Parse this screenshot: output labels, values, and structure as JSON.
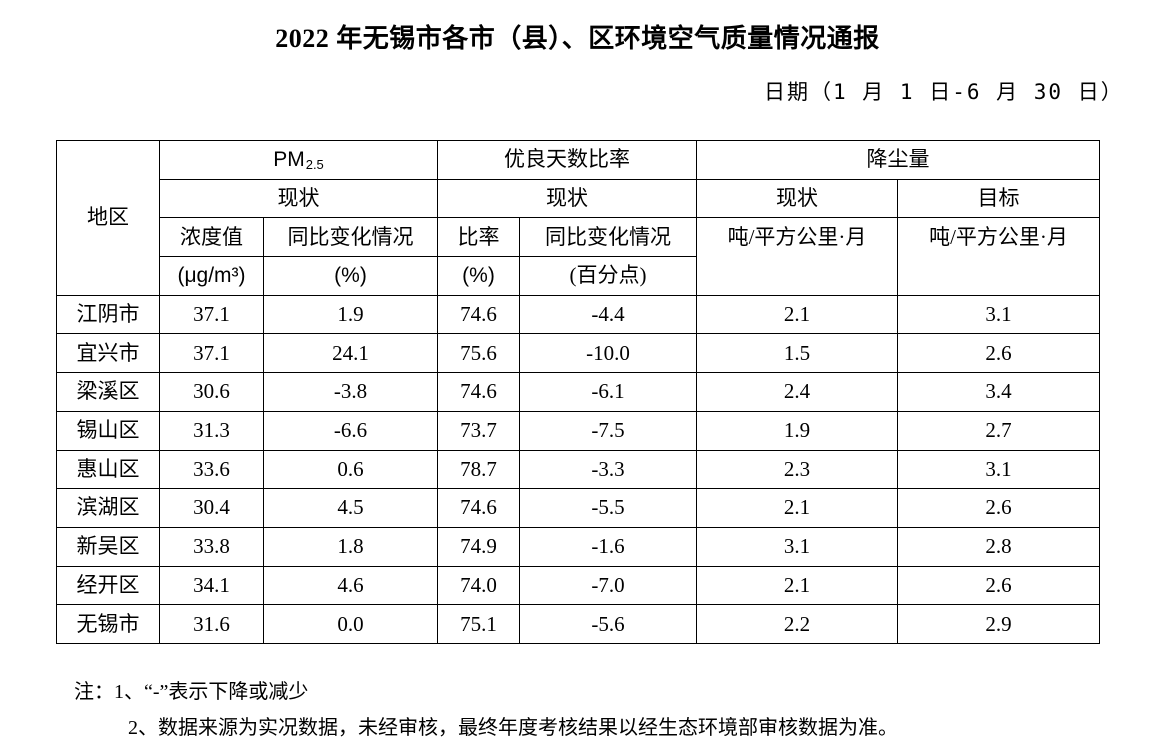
{
  "title": "2022 年无锡市各市（县）、区环境空气质量情况通报",
  "date": "日期（1 月 1 日-6 月 30 日）",
  "table": {
    "header": {
      "region": "地区",
      "pm_main": "PM",
      "pm_sub": "2.5",
      "good_days_rate": "优良天数比率",
      "dust": "降尘量",
      "pm_status": "现状",
      "good_status": "现状",
      "dust_status": "现状",
      "dust_target": "目标",
      "concentration_line1": "浓度值",
      "concentration_line2": "(μg/m³)",
      "yoy_line1": "同比变化情况",
      "yoy_line2": "(%)",
      "rate_line1": "比率",
      "rate_line2": "(%)",
      "yoy_pp_line1": "同比变化情况",
      "yoy_pp_line2": "(百分点)",
      "dust_unit_status": "吨/平方公里·月",
      "dust_unit_target": "吨/平方公里·月"
    },
    "rows": [
      {
        "region": "江阴市",
        "pm": "37.1",
        "pm_yoy": "1.9",
        "rate": "74.6",
        "rate_yoy": "-4.4",
        "dust": "2.1",
        "target": "3.1"
      },
      {
        "region": "宜兴市",
        "pm": "37.1",
        "pm_yoy": "24.1",
        "rate": "75.6",
        "rate_yoy": "-10.0",
        "dust": "1.5",
        "target": "2.6"
      },
      {
        "region": "梁溪区",
        "pm": "30.6",
        "pm_yoy": "-3.8",
        "rate": "74.6",
        "rate_yoy": "-6.1",
        "dust": "2.4",
        "target": "3.4"
      },
      {
        "region": "锡山区",
        "pm": "31.3",
        "pm_yoy": "-6.6",
        "rate": "73.7",
        "rate_yoy": "-7.5",
        "dust": "1.9",
        "target": "2.7"
      },
      {
        "region": "惠山区",
        "pm": "33.6",
        "pm_yoy": "0.6",
        "rate": "78.7",
        "rate_yoy": "-3.3",
        "dust": "2.3",
        "target": "3.1"
      },
      {
        "region": "滨湖区",
        "pm": "30.4",
        "pm_yoy": "4.5",
        "rate": "74.6",
        "rate_yoy": "-5.5",
        "dust": "2.1",
        "target": "2.6"
      },
      {
        "region": "新吴区",
        "pm": "33.8",
        "pm_yoy": "1.8",
        "rate": "74.9",
        "rate_yoy": "-1.6",
        "dust": "3.1",
        "target": "2.8"
      },
      {
        "region": "经开区",
        "pm": "34.1",
        "pm_yoy": "4.6",
        "rate": "74.0",
        "rate_yoy": "-7.0",
        "dust": "2.1",
        "target": "2.6"
      },
      {
        "region": "无锡市",
        "pm": "31.6",
        "pm_yoy": "0.0",
        "rate": "75.1",
        "rate_yoy": "-5.6",
        "dust": "2.2",
        "target": "2.9"
      }
    ]
  },
  "notes": {
    "line1": "注：1、“-”表示下降或减少",
    "line2": "2、数据来源为实况数据，未经审核，最终年度考核结果以经生态环境部审核数据为准。"
  }
}
